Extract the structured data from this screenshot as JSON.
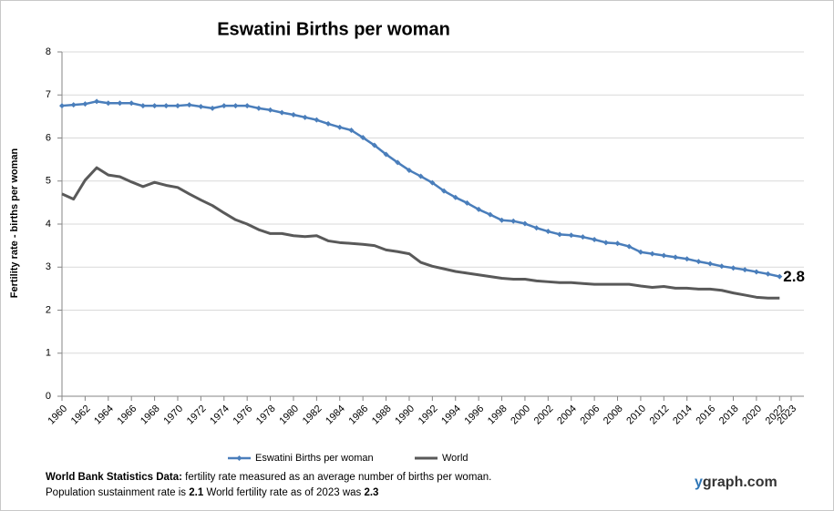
{
  "chart_data": {
    "type": "line",
    "title": "Eswatini Births per woman",
    "y_label": "Fertility rate  - births per woman",
    "x": [
      1960,
      1961,
      1962,
      1963,
      1964,
      1965,
      1966,
      1967,
      1968,
      1969,
      1970,
      1971,
      1972,
      1973,
      1974,
      1975,
      1976,
      1977,
      1978,
      1979,
      1980,
      1981,
      1982,
      1983,
      1984,
      1985,
      1986,
      1987,
      1988,
      1989,
      1990,
      1991,
      1992,
      1993,
      1994,
      1995,
      1996,
      1997,
      1998,
      1999,
      2000,
      2001,
      2002,
      2003,
      2004,
      2005,
      2006,
      2007,
      2008,
      2009,
      2010,
      2011,
      2012,
      2013,
      2014,
      2015,
      2016,
      2017,
      2018,
      2019,
      2020,
      2021,
      2022
    ],
    "series": [
      {
        "name": "Eswatini Births per woman",
        "color": "#4a7ebb",
        "markers": true,
        "values": [
          6.75,
          6.77,
          6.79,
          6.85,
          6.81,
          6.81,
          6.81,
          6.75,
          6.75,
          6.75,
          6.75,
          6.77,
          6.73,
          6.69,
          6.75,
          6.75,
          6.75,
          6.69,
          6.65,
          6.59,
          6.54,
          6.48,
          6.42,
          6.33,
          6.25,
          6.18,
          6.01,
          5.83,
          5.62,
          5.43,
          5.25,
          5.11,
          4.96,
          4.77,
          4.62,
          4.49,
          4.34,
          4.22,
          4.09,
          4.07,
          4.01,
          3.91,
          3.83,
          3.76,
          3.74,
          3.7,
          3.64,
          3.57,
          3.55,
          3.48,
          3.35,
          3.31,
          3.27,
          3.23,
          3.19,
          3.13,
          3.08,
          3.02,
          2.98,
          2.94,
          2.89,
          2.84,
          2.78
        ]
      },
      {
        "name": "World",
        "color": "#595959",
        "markers": false,
        "values": [
          4.7,
          4.58,
          5.02,
          5.31,
          5.14,
          5.1,
          4.98,
          4.87,
          4.97,
          4.9,
          4.85,
          4.7,
          4.56,
          4.43,
          4.26,
          4.1,
          4.0,
          3.87,
          3.78,
          3.78,
          3.73,
          3.71,
          3.73,
          3.61,
          3.57,
          3.55,
          3.53,
          3.5,
          3.4,
          3.36,
          3.31,
          3.11,
          3.02,
          2.96,
          2.9,
          2.86,
          2.82,
          2.78,
          2.74,
          2.72,
          2.72,
          2.68,
          2.66,
          2.64,
          2.64,
          2.62,
          2.6,
          2.6,
          2.6,
          2.6,
          2.56,
          2.53,
          2.55,
          2.51,
          2.51,
          2.49,
          2.49,
          2.46,
          2.4,
          2.35,
          2.3,
          2.28,
          2.28
        ]
      }
    ],
    "end_label": "2.8",
    "xlim": [
      1960,
      2023
    ],
    "xticks": [
      1960,
      1962,
      1964,
      1966,
      1968,
      1970,
      1972,
      1974,
      1976,
      1978,
      1980,
      1982,
      1984,
      1986,
      1988,
      1990,
      1992,
      1994,
      1996,
      1998,
      2000,
      2002,
      2004,
      2006,
      2008,
      2010,
      2012,
      2014,
      2016,
      2018,
      2020,
      2022,
      2023
    ],
    "ylim": [
      0,
      8
    ],
    "yticks": [
      0,
      1,
      2,
      3,
      4,
      5,
      6,
      7,
      8
    ],
    "grid": true,
    "legend": "bottom"
  },
  "footer": {
    "line1": [
      "World Bank Statistics Data:",
      " fertility rate measured as an average number  of births per woman."
    ],
    "line2": [
      "Population sustainment rate is ",
      2.1,
      "   World fertility rate as of 2023 was ",
      2.3
    ]
  },
  "brand": [
    "y",
    "graph.com"
  ]
}
